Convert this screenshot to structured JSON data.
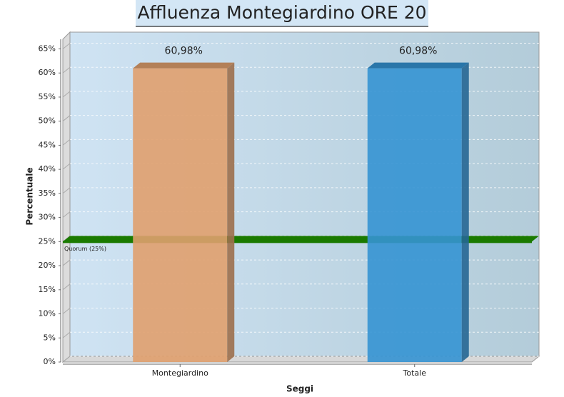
{
  "chart_data": {
    "type": "bar",
    "title": "Affluenza Montegiardino ORE 20",
    "categories": [
      "Montegiardino",
      "Totale"
    ],
    "values": [
      60.98,
      60.98
    ],
    "value_labels": [
      "60,98%",
      "60,98%"
    ],
    "colors": [
      "#e0a06e",
      "#3594d3"
    ],
    "xlabel": "Seggi",
    "ylabel": "Percentuale",
    "ylim": [
      0,
      67
    ],
    "yticks": [
      {
        "value": 0,
        "label": "0%"
      },
      {
        "value": 5,
        "label": "5%"
      },
      {
        "value": 10,
        "label": "10%"
      },
      {
        "value": 15,
        "label": "15%"
      },
      {
        "value": 20,
        "label": "20%"
      },
      {
        "value": 25,
        "label": "25%"
      },
      {
        "value": 30,
        "label": "30%"
      },
      {
        "value": 35,
        "label": "35%"
      },
      {
        "value": 40,
        "label": "40%"
      },
      {
        "value": 45,
        "label": "45%"
      },
      {
        "value": 50,
        "label": "50%"
      },
      {
        "value": 55,
        "label": "55%"
      },
      {
        "value": 60,
        "label": "60%"
      },
      {
        "value": 65,
        "label": "65%"
      }
    ],
    "grid": true,
    "quorum": {
      "value": 25,
      "label": "Quorum (25%)",
      "color": "#1a7a00"
    }
  }
}
